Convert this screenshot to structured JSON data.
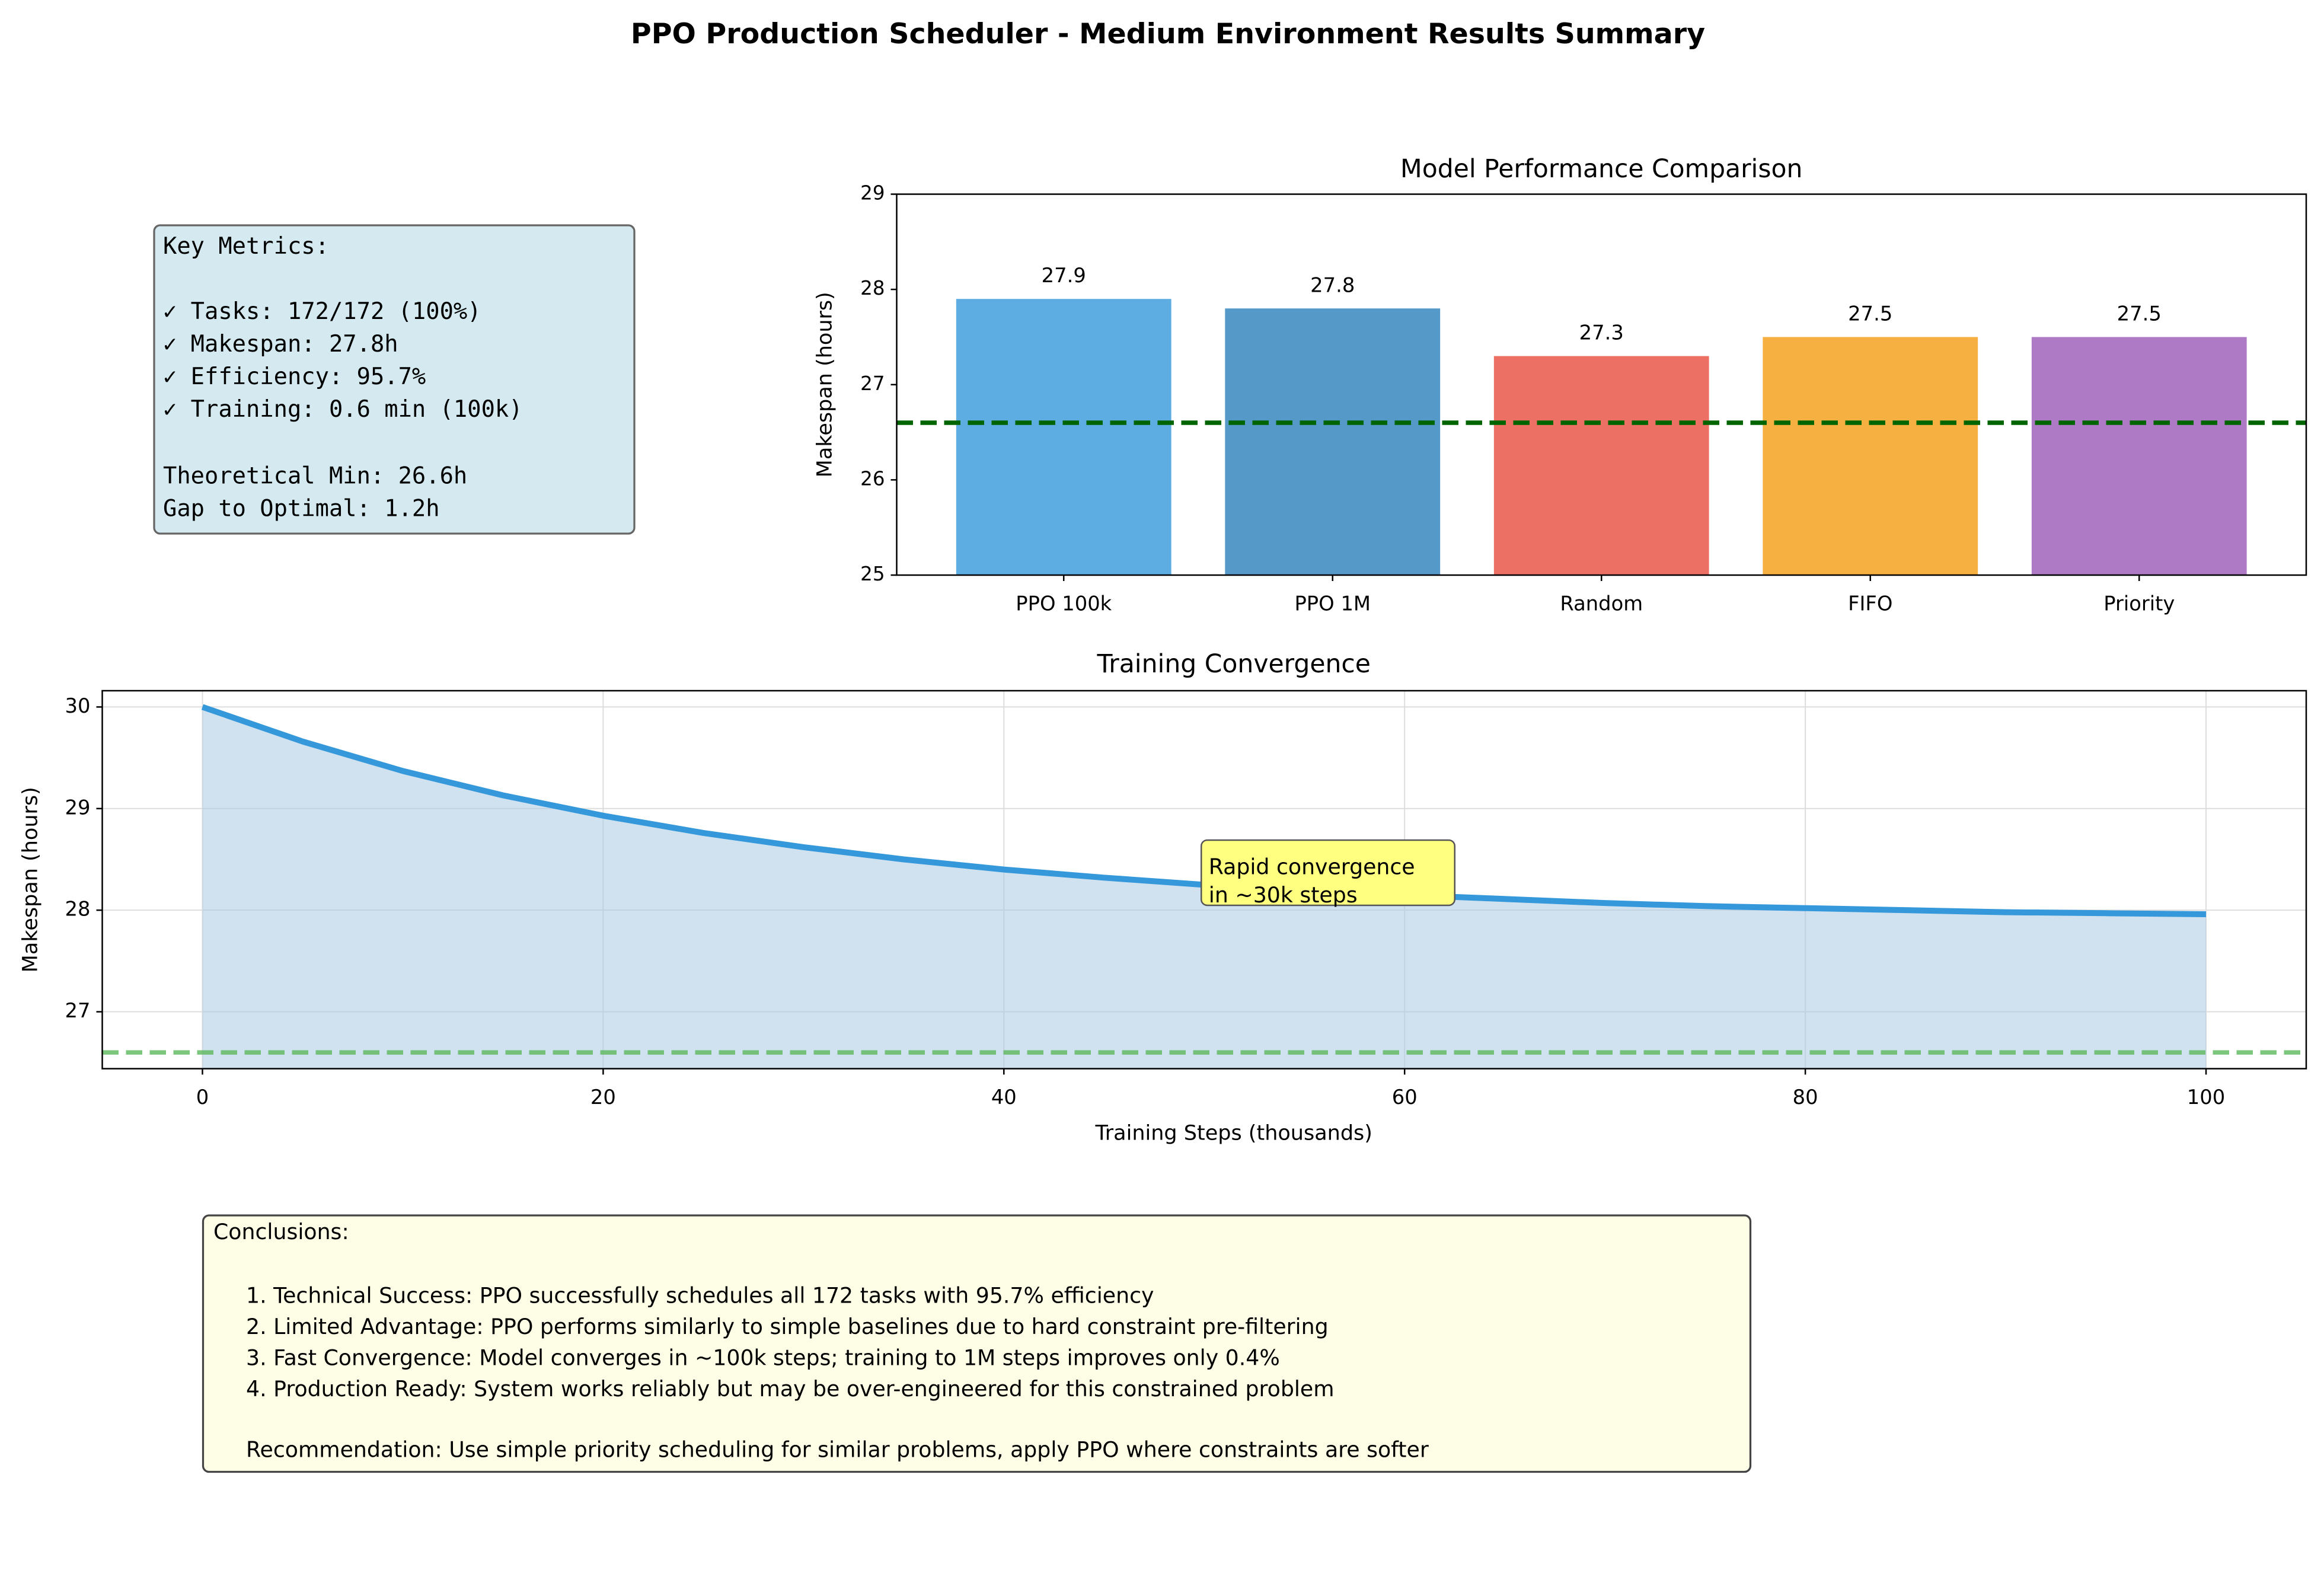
{
  "title": "PPO Production Scheduler - Medium Environment Results Summary",
  "key_metrics": {
    "heading": "Key Metrics:",
    "items": [
      "✓ Tasks: 172/172 (100%)",
      "✓ Makespan: 27.8h",
      "✓ Efficiency: 95.7%",
      "✓ Training: 0.6 min (100k)"
    ],
    "notes": [
      "Theoretical Min: 26.6h",
      "Gap to Optimal: 1.2h"
    ]
  },
  "conclusions": {
    "heading": "Conclusions:",
    "items": [
      "1. Technical Success: PPO successfully schedules all 172 tasks with 95.7% efficiency",
      "2. Limited Advantage: PPO performs similarly to simple baselines due to hard constraint pre-filtering",
      "3. Fast Convergence: Model converges in ~100k steps; training to 1M steps improves only 0.4%",
      "4. Production Ready: System works reliably but may be over-engineered for this constrained problem"
    ],
    "recommendation": "Recommendation: Use simple priority scheduling for similar problems, apply PPO where constraints are softer"
  },
  "chart_data": [
    {
      "type": "bar",
      "title": "Model Performance Comparison",
      "ylabel": "Makespan (hours)",
      "categories": [
        "PPO 100k",
        "PPO 1M",
        "Random",
        "FIFO",
        "Priority"
      ],
      "values": [
        27.9,
        27.8,
        27.3,
        27.5,
        27.5
      ],
      "colors": [
        "#5dade2",
        "#5499c7",
        "#ec7063",
        "#f5b041",
        "#af7ac5"
      ],
      "ylim": [
        25,
        29
      ],
      "yticks": [
        25,
        26,
        27,
        28,
        29
      ],
      "reference_line": 26.6,
      "reference_color": "#006400",
      "grid": false
    },
    {
      "type": "line",
      "title": "Training Convergence",
      "xlabel": "Training Steps (thousands)",
      "ylabel": "Makespan (hours)",
      "x": [
        0,
        5,
        10,
        15,
        20,
        25,
        30,
        35,
        40,
        45,
        50,
        55,
        60,
        65,
        70,
        75,
        80,
        85,
        90,
        95,
        100
      ],
      "values": [
        30.0,
        29.66,
        29.37,
        29.13,
        28.93,
        28.76,
        28.62,
        28.5,
        28.4,
        28.32,
        28.25,
        28.19,
        28.15,
        28.11,
        28.07,
        28.04,
        28.02,
        28.0,
        27.98,
        27.97,
        27.96
      ],
      "color": "#3498db",
      "fill_color": "#a9c9e2",
      "xlim": [
        -5,
        105
      ],
      "ylim": [
        26.44,
        30.16
      ],
      "xticks": [
        0,
        20,
        40,
        60,
        80,
        100
      ],
      "yticks": [
        27,
        28,
        29,
        30
      ],
      "reference_line": 26.6,
      "reference_color": "#5cb85c",
      "annotation": [
        "Rapid convergence",
        "in ~30k steps"
      ],
      "grid": true
    }
  ]
}
